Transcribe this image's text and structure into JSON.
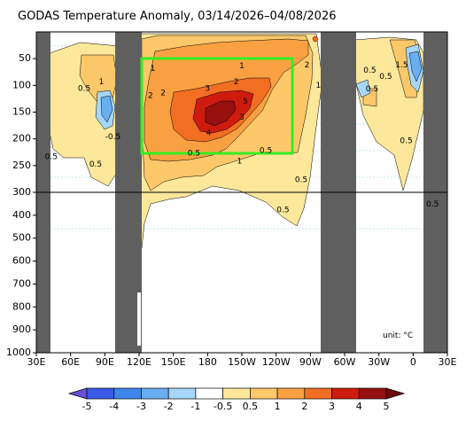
{
  "chart_data": {
    "type": "heatmap",
    "title": "GODAS Temperature Anomaly, 03/14/2026–04/08/2026",
    "xlabel": "",
    "ylabel": "",
    "x_ticks": [
      "30E",
      "60E",
      "90E",
      "120E",
      "150E",
      "180",
      "150W",
      "120W",
      "90W",
      "60W",
      "30W",
      "0",
      "30E"
    ],
    "y_ticks_upper": [
      "50",
      "100",
      "150",
      "200",
      "250",
      "300"
    ],
    "y_ticks_lower": [
      "400",
      "500",
      "600",
      "700",
      "800",
      "900",
      "1000"
    ],
    "xlim_lon_east": [
      30,
      390
    ],
    "ylim_depth_m": [
      0,
      1000
    ],
    "y_axis_note": "depth (m), linear 0-300 in upper panel, linear 300-1000 in lower panel",
    "colorbar": {
      "boundaries": [
        "-5",
        "-4",
        "-3",
        "-2",
        "-1",
        "-0.5",
        "0.5",
        "1",
        "2",
        "3",
        "4",
        "5"
      ],
      "colors": [
        "#6a4fd8",
        "#3a5be8",
        "#3f86ec",
        "#6aaef2",
        "#a6d6f8",
        "#ffffff",
        "#fde79a",
        "#fcc86a",
        "#f9a142",
        "#f26e22",
        "#cf1b0f",
        "#971010",
        "#6e0a0a"
      ],
      "extend": "both"
    },
    "units_label": "unit: °C",
    "land_mask_color": "#5f5f5f",
    "land_bands_lon_east": [
      [
        42,
        50
      ],
      [
        100,
        120
      ],
      [
        280,
        307
      ],
      [
        368,
        390
      ]
    ],
    "highlight_box": {
      "lon_east": [
        123,
        254
      ],
      "depth_m": [
        50,
        230
      ],
      "color": "#33ee22"
    },
    "divider_depth_m": 300,
    "contour_labels": [
      {
        "text": "0.5",
        "lon": 72,
        "depth": 106
      },
      {
        "text": "1",
        "lon": 87,
        "depth": 94
      },
      {
        "text": "-0.5",
        "lon": 97,
        "depth": 196
      },
      {
        "text": "0.5",
        "lon": 43,
        "depth": 234
      },
      {
        "text": "0.5",
        "lon": 82,
        "depth": 248
      },
      {
        "text": "1",
        "lon": 132,
        "depth": 69
      },
      {
        "text": "1",
        "lon": 210,
        "depth": 64
      },
      {
        "text": "2",
        "lon": 267,
        "depth": 62
      },
      {
        "text": "1",
        "lon": 277,
        "depth": 100
      },
      {
        "text": "2",
        "lon": 130,
        "depth": 119
      },
      {
        "text": "2",
        "lon": 141,
        "depth": 114
      },
      {
        "text": "2",
        "lon": 205,
        "depth": 94
      },
      {
        "text": "3",
        "lon": 180,
        "depth": 106
      },
      {
        "text": "5",
        "lon": 213,
        "depth": 130
      },
      {
        "text": "3",
        "lon": 210,
        "depth": 160
      },
      {
        "text": "4",
        "lon": 181,
        "depth": 189
      },
      {
        "text": "1",
        "lon": 208,
        "depth": 242
      },
      {
        "text": "0.5",
        "lon": 168,
        "depth": 227
      },
      {
        "text": "0.5",
        "lon": 231,
        "depth": 222
      },
      {
        "text": "0.5",
        "lon": 262,
        "depth": 277
      },
      {
        "text": "0.5",
        "lon": 246,
        "depth": 377
      },
      {
        "text": "0.5",
        "lon": 322,
        "depth": 72
      },
      {
        "text": "1.5",
        "lon": 350,
        "depth": 62
      },
      {
        "text": "0.5",
        "lon": 336,
        "depth": 84
      },
      {
        "text": "0.5",
        "lon": 324,
        "depth": 107
      },
      {
        "text": "0.5",
        "lon": 354,
        "depth": 204
      },
      {
        "text": "0.5",
        "lon": 377,
        "depth": 353
      }
    ],
    "anomaly_cores": [
      {
        "value": 5,
        "lon": 190,
        "depth": 150,
        "note": "main warm core, central Pacific"
      },
      {
        "value": -1,
        "lon": 91,
        "depth": 140,
        "note": "cool patch, Indian Ocean"
      },
      {
        "value": -1,
        "lon": 353,
        "depth": 85,
        "note": "cool patch, Atlantic"
      },
      {
        "value": 2,
        "lon": 268,
        "depth": 46,
        "note": "warm near-surface eastern Pacific"
      }
    ]
  }
}
